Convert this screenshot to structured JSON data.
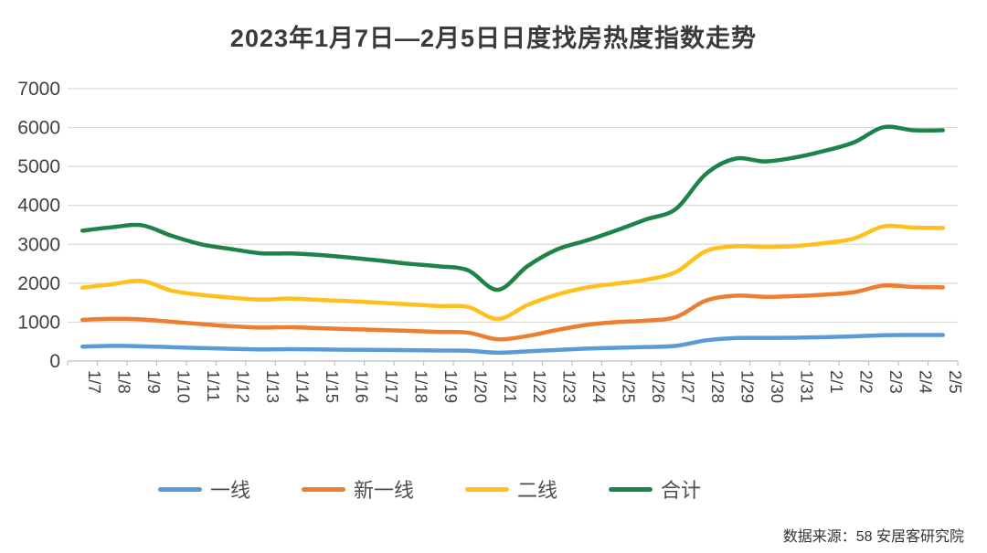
{
  "title": "2023年1月7日—2月5日日度找房热度指数走势",
  "source": "数据来源：58 安居客研究院",
  "colors": {
    "tier1_blue": "#5B9BD5",
    "new_tier1_orange": "#ED7D31",
    "tier2_yellow": "#FFC01E",
    "total_green": "#1D8348",
    "gridline": "#d9d9d9",
    "axis_line": "#bfbfbf",
    "tick_label": "#3f3f46",
    "title_text": "#3a3a3a"
  },
  "chart_data": {
    "type": "line",
    "title": "2023年1月7日—2月5日日度找房热度指数走势",
    "xlabel": "",
    "ylabel": "",
    "ylim": [
      0,
      7000
    ],
    "yticks": [
      0,
      1000,
      2000,
      3000,
      4000,
      5000,
      6000,
      7000
    ],
    "grid": true,
    "legend_position": "bottom",
    "categories": [
      "1/7",
      "1/8",
      "1/9",
      "1/10",
      "1/11",
      "1/12",
      "1/13",
      "1/14",
      "1/15",
      "1/16",
      "1/17",
      "1/18",
      "1/19",
      "1/20",
      "1/21",
      "1/22",
      "1/23",
      "1/24",
      "1/25",
      "1/26",
      "1/27",
      "1/28",
      "1/29",
      "1/30",
      "1/31",
      "2/1",
      "2/2",
      "2/3",
      "2/4",
      "2/5"
    ],
    "series": [
      {
        "name": "一线",
        "color": "#5B9BD5",
        "values": [
          370,
          390,
          380,
          355,
          335,
          315,
          300,
          305,
          300,
          290,
          285,
          280,
          270,
          265,
          215,
          250,
          285,
          320,
          340,
          360,
          390,
          530,
          590,
          595,
          600,
          615,
          635,
          665,
          670,
          670
        ]
      },
      {
        "name": "新一线",
        "color": "#ED7D31",
        "values": [
          1060,
          1085,
          1070,
          1010,
          950,
          895,
          860,
          870,
          845,
          820,
          800,
          775,
          750,
          730,
          560,
          645,
          800,
          930,
          1000,
          1040,
          1130,
          1550,
          1680,
          1650,
          1670,
          1705,
          1770,
          1940,
          1905,
          1895
        ]
      },
      {
        "name": "二线",
        "color": "#FFC01E",
        "values": [
          1885,
          1975,
          2060,
          1810,
          1700,
          1630,
          1580,
          1605,
          1570,
          1540,
          1500,
          1460,
          1415,
          1390,
          1080,
          1440,
          1710,
          1890,
          1990,
          2090,
          2290,
          2820,
          2950,
          2930,
          2955,
          3030,
          3150,
          3460,
          3430,
          3420
        ]
      },
      {
        "name": "合计",
        "color": "#1D8348",
        "values": [
          3350,
          3440,
          3490,
          3220,
          3000,
          2880,
          2770,
          2765,
          2725,
          2660,
          2585,
          2500,
          2435,
          2330,
          1830,
          2440,
          2870,
          3100,
          3360,
          3640,
          3910,
          4800,
          5200,
          5130,
          5230,
          5400,
          5620,
          6010,
          5930,
          5930
        ]
      }
    ]
  }
}
